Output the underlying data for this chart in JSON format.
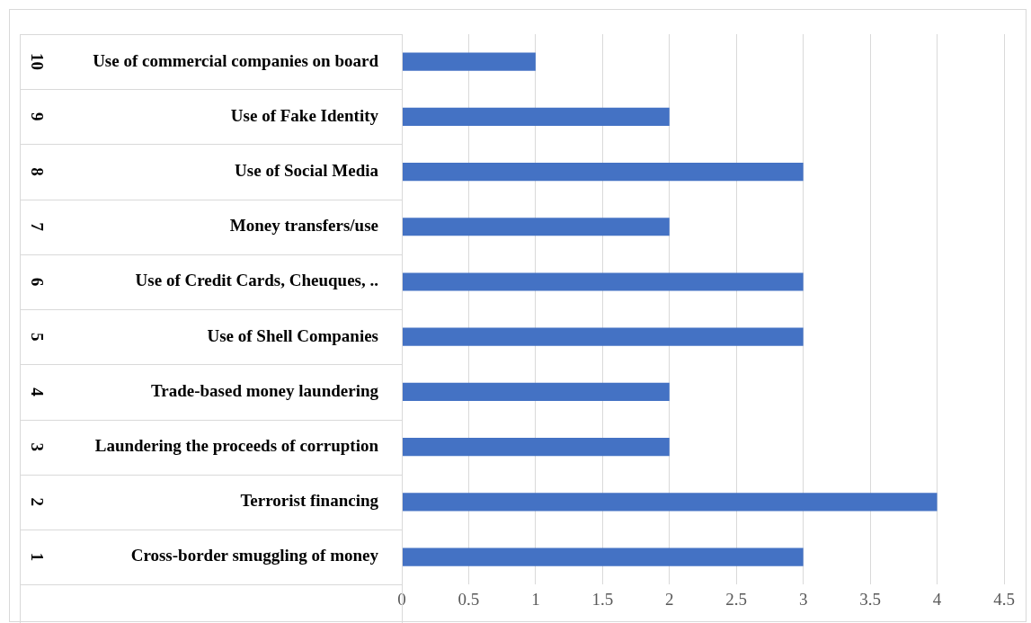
{
  "chart_data": {
    "type": "bar",
    "orientation": "horizontal",
    "categories": [
      "Use of commercial companies on board",
      "Use of Fake Identity",
      "Use of Social Media",
      "Money transfers/use",
      "Use of Credit Cards, Cheuques, ..",
      "Use of Shell Companies",
      "Trade-based money laundering",
      "Laundering the proceeds of corruption",
      "Terrorist financing",
      "Cross-border smuggling of money"
    ],
    "values": [
      1,
      2,
      3,
      2,
      3,
      3,
      2,
      2,
      4,
      3
    ],
    "color": "#4472c4",
    "xlim": [
      0,
      4.5
    ],
    "xticks": [
      0,
      0.5,
      1,
      1.5,
      2,
      2.5,
      3,
      3.5,
      4,
      4.5
    ],
    "grid": "x",
    "annotations": [
      "10",
      "9",
      "8",
      "7",
      "6",
      "5",
      "4",
      "3",
      "2",
      "1"
    ]
  }
}
